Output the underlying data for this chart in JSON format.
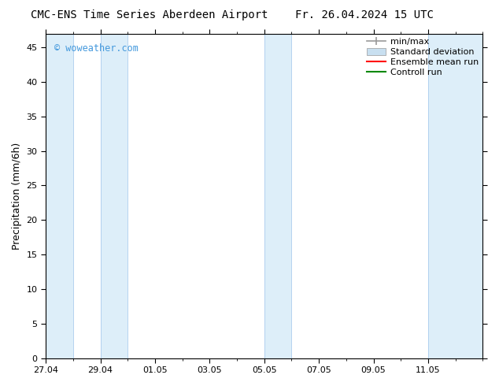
{
  "title_left": "CMC-ENS Time Series Aberdeen Airport",
  "title_right": "Fr. 26.04.2024 15 UTC",
  "ylabel": "Precipitation (mm/6h)",
  "watermark": "© woweather.com",
  "watermark_color": "#4499dd",
  "xlim_start": 0,
  "xlim_end": 16,
  "ylim": [
    0,
    47
  ],
  "yticks": [
    0,
    5,
    10,
    15,
    20,
    25,
    30,
    35,
    40,
    45
  ],
  "xtick_labels": [
    "27.04",
    "29.04",
    "01.05",
    "03.05",
    "05.05",
    "07.05",
    "09.05",
    "11.05"
  ],
  "xtick_positions": [
    0,
    2,
    4,
    6,
    8,
    10,
    12,
    14
  ],
  "background_color": "#ffffff",
  "plot_bg_color": "#ffffff",
  "shaded_bands": [
    {
      "x_start": 0.0,
      "x_end": 1.0,
      "color": "#ddeef9"
    },
    {
      "x_start": 2.0,
      "x_end": 3.0,
      "color": "#ddeef9"
    },
    {
      "x_start": 8.0,
      "x_end": 9.0,
      "color": "#ddeef9"
    },
    {
      "x_start": 14.0,
      "x_end": 16.0,
      "color": "#ddeef9"
    }
  ],
  "band_border_color": "#aaccee",
  "legend_labels": [
    "min/max",
    "Standard deviation",
    "Ensemble mean run",
    "Controll run"
  ],
  "legend_minmax_color": "#999999",
  "legend_std_color": "#c8dff0",
  "legend_ens_color": "#ff0000",
  "legend_ctrl_color": "#008800",
  "tick_font_size": 8,
  "label_font_size": 9,
  "title_font_size": 10,
  "legend_font_size": 8
}
